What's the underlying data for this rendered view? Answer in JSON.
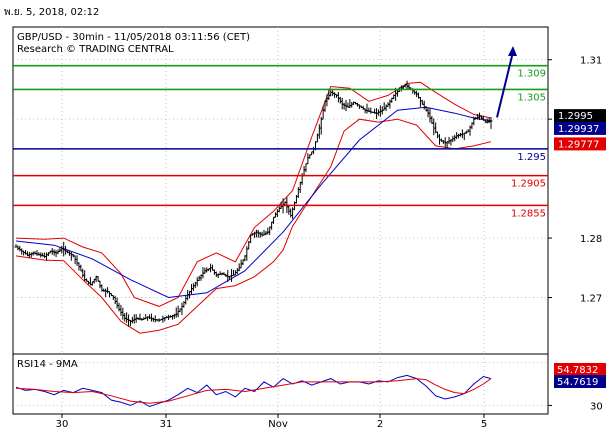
{
  "header": {
    "timestamp": "พ.ย. 5, 2018, 02:12",
    "title": "GBP/USD - 30min - 11/05/2018 03:11:56 (CET)",
    "source": "Research © TRADING CENTRAL"
  },
  "colors": {
    "green": "#1c9a1c",
    "red": "#e00000",
    "blue": "#00008c",
    "price": "#000000",
    "band": "#e00000",
    "ma": "#0000c8",
    "grid": "#aaaaaa"
  },
  "chart_data": [
    {
      "type": "candlestick",
      "title": "GBP/USD - 30min - 11/05/2018 03:11:56 (CET)",
      "x_ticks": [
        "30",
        "31",
        "Nov",
        "2",
        "5"
      ],
      "y_ticks": [
        {
          "value": 1.27,
          "label": "1.27"
        },
        {
          "value": 1.28,
          "label": "1.28"
        },
        {
          "value": 1.3,
          "label": "1.30"
        },
        {
          "value": 1.31,
          "label": "1.31"
        }
      ],
      "ylim": [
        1.2605,
        1.3155
      ],
      "levels": [
        {
          "value": 1.309,
          "label": "1.309",
          "color": "green"
        },
        {
          "value": 1.305,
          "label": "1.305",
          "color": "green"
        },
        {
          "value": 1.295,
          "label": "1.295",
          "color": "blue"
        },
        {
          "value": 1.2905,
          "label": "1.2905",
          "color": "red"
        },
        {
          "value": 1.2855,
          "label": "1.2855",
          "color": "red"
        }
      ],
      "price_tags": [
        {
          "value": 1.2995,
          "label": "1.2995",
          "bg": "#000000",
          "fg": "#ffffff"
        },
        {
          "value": 1.29937,
          "label": "1.29937",
          "bg": "#00008c",
          "fg": "#ffffff"
        },
        {
          "value": 1.29777,
          "label": "1.29777",
          "bg": "#e00000",
          "fg": "#ffffff"
        }
      ],
      "projection": {
        "from": 1.3003,
        "to": 1.3123
      },
      "price_path": [
        [
          0,
          1.2785
        ],
        [
          3,
          1.2778
        ],
        [
          6,
          1.2771
        ],
        [
          9,
          1.2775
        ],
        [
          12,
          1.2772
        ],
        [
          15,
          1.2769
        ],
        [
          18,
          1.2778
        ],
        [
          21,
          1.2775
        ],
        [
          24,
          1.2782
        ],
        [
          27,
          1.2776
        ],
        [
          30,
          1.277
        ],
        [
          33,
          1.2752
        ],
        [
          36,
          1.273
        ],
        [
          39,
          1.2722
        ],
        [
          42,
          1.2735
        ],
        [
          45,
          1.2712
        ],
        [
          48,
          1.271
        ],
        [
          51,
          1.27
        ],
        [
          54,
          1.268
        ],
        [
          57,
          1.2665
        ],
        [
          60,
          1.266
        ],
        [
          63,
          1.2665
        ],
        [
          66,
          1.2663
        ],
        [
          69,
          1.2667
        ],
        [
          72,
          1.2663
        ],
        [
          75,
          1.2662
        ],
        [
          78,
          1.2666
        ],
        [
          81,
          1.2668
        ],
        [
          84,
          1.2672
        ],
        [
          87,
          1.2685
        ],
        [
          90,
          1.2705
        ],
        [
          93,
          1.272
        ],
        [
          96,
          1.2733
        ],
        [
          99,
          1.2745
        ],
        [
          102,
          1.275
        ],
        [
          105,
          1.2738
        ],
        [
          108,
          1.274
        ],
        [
          111,
          1.2735
        ],
        [
          114,
          1.2738
        ],
        [
          117,
          1.275
        ],
        [
          120,
          1.277
        ],
        [
          123,
          1.2805
        ],
        [
          126,
          1.281
        ],
        [
          129,
          1.2805
        ],
        [
          132,
          1.281
        ],
        [
          135,
          1.2835
        ],
        [
          138,
          1.285
        ],
        [
          141,
          1.286
        ],
        [
          144,
          1.2838
        ],
        [
          147,
          1.287
        ],
        [
          150,
          1.2905
        ],
        [
          153,
          1.2935
        ],
        [
          156,
          1.295
        ],
        [
          159,
          1.2985
        ],
        [
          162,
          1.303
        ],
        [
          165,
          1.3045
        ],
        [
          168,
          1.304
        ],
        [
          171,
          1.3025
        ],
        [
          174,
          1.302
        ],
        [
          177,
          1.3028
        ],
        [
          180,
          1.3022
        ],
        [
          183,
          1.3015
        ],
        [
          186,
          1.3012
        ],
        [
          189,
          1.301
        ],
        [
          192,
          1.3015
        ],
        [
          195,
          1.3025
        ],
        [
          198,
          1.304
        ],
        [
          201,
          1.305
        ],
        [
          204,
          1.3058
        ],
        [
          207,
          1.305
        ],
        [
          210,
          1.3042
        ],
        [
          213,
          1.3025
        ],
        [
          216,
          1.301
        ],
        [
          219,
          1.2985
        ],
        [
          222,
          1.2965
        ],
        [
          225,
          1.296
        ],
        [
          228,
          1.2965
        ],
        [
          231,
          1.2972
        ],
        [
          234,
          1.2975
        ],
        [
          237,
          1.298
        ],
        [
          240,
          1.3
        ],
        [
          243,
          1.3005
        ],
        [
          246,
          1.2995
        ],
        [
          249,
          1.2997
        ]
      ],
      "ma_path": [
        [
          0,
          1.2795
        ],
        [
          20,
          1.2788
        ],
        [
          40,
          1.2765
        ],
        [
          60,
          1.273
        ],
        [
          80,
          1.27
        ],
        [
          100,
          1.2708
        ],
        [
          120,
          1.2745
        ],
        [
          140,
          1.281
        ],
        [
          160,
          1.289
        ],
        [
          180,
          1.2965
        ],
        [
          200,
          1.3015
        ],
        [
          215,
          1.302
        ],
        [
          230,
          1.301
        ],
        [
          240,
          1.3002
        ],
        [
          249,
          1.2997
        ]
      ],
      "band_upper": [
        [
          0,
          1.28
        ],
        [
          15,
          1.2798
        ],
        [
          25,
          1.28
        ],
        [
          35,
          1.2785
        ],
        [
          45,
          1.2775
        ],
        [
          55,
          1.274
        ],
        [
          62,
          1.27
        ],
        [
          75,
          1.2685
        ],
        [
          85,
          1.27
        ],
        [
          95,
          1.276
        ],
        [
          105,
          1.2775
        ],
        [
          115,
          1.276
        ],
        [
          125,
          1.2818
        ],
        [
          135,
          1.2845
        ],
        [
          145,
          1.288
        ],
        [
          155,
          1.297
        ],
        [
          165,
          1.3055
        ],
        [
          175,
          1.3052
        ],
        [
          185,
          1.303
        ],
        [
          195,
          1.304
        ],
        [
          205,
          1.306
        ],
        [
          212,
          1.3062
        ],
        [
          220,
          1.3045
        ],
        [
          230,
          1.3025
        ],
        [
          240,
          1.3008
        ],
        [
          249,
          1.3002
        ]
      ],
      "band_lower": [
        [
          0,
          1.277
        ],
        [
          15,
          1.2763
        ],
        [
          25,
          1.2762
        ],
        [
          35,
          1.273
        ],
        [
          45,
          1.27
        ],
        [
          55,
          1.266
        ],
        [
          65,
          1.264
        ],
        [
          75,
          1.2645
        ],
        [
          85,
          1.2655
        ],
        [
          95,
          1.2685
        ],
        [
          105,
          1.2715
        ],
        [
          115,
          1.272
        ],
        [
          125,
          1.2735
        ],
        [
          135,
          1.276
        ],
        [
          140,
          1.278
        ],
        [
          145,
          1.282
        ],
        [
          155,
          1.287
        ],
        [
          165,
          1.292
        ],
        [
          172,
          1.298
        ],
        [
          180,
          1.3
        ],
        [
          190,
          1.2995
        ],
        [
          200,
          1.3
        ],
        [
          210,
          1.299
        ],
        [
          220,
          1.2955
        ],
        [
          230,
          1.295
        ],
        [
          240,
          1.2955
        ],
        [
          249,
          1.2962
        ]
      ]
    },
    {
      "type": "line",
      "title": "RSI14 - 9MA",
      "x_ticks": [
        "30",
        "31",
        "Nov",
        "2",
        "5"
      ],
      "y_ticks": [
        {
          "value": 30,
          "label": "30"
        }
      ],
      "ylim": [
        22,
        78
      ],
      "value_tags": [
        {
          "value": 54.7832,
          "label": "54.7832",
          "bg": "#e00000",
          "fg": "#ffffff"
        },
        {
          "value": 54.7619,
          "label": "54.7619",
          "bg": "#00008c",
          "fg": "#ffffff"
        }
      ],
      "series": [
        {
          "color": "ma",
          "values": [
            [
              0,
              47
            ],
            [
              5,
              44
            ],
            [
              10,
              45
            ],
            [
              15,
              43
            ],
            [
              20,
              40
            ],
            [
              25,
              44
            ],
            [
              30,
              42
            ],
            [
              35,
              46
            ],
            [
              40,
              44
            ],
            [
              45,
              42
            ],
            [
              50,
              35
            ],
            [
              55,
              33
            ],
            [
              60,
              30
            ],
            [
              65,
              34
            ],
            [
              70,
              29
            ],
            [
              75,
              32
            ],
            [
              80,
              35
            ],
            [
              85,
              40
            ],
            [
              90,
              46
            ],
            [
              95,
              42
            ],
            [
              100,
              49
            ],
            [
              105,
              40
            ],
            [
              110,
              43
            ],
            [
              115,
              38
            ],
            [
              120,
              46
            ],
            [
              125,
              43
            ],
            [
              130,
              52
            ],
            [
              135,
              47
            ],
            [
              140,
              55
            ],
            [
              145,
              50
            ],
            [
              150,
              53
            ],
            [
              155,
              49
            ],
            [
              160,
              52
            ],
            [
              165,
              55
            ],
            [
              170,
              50
            ],
            [
              175,
              52
            ],
            [
              180,
              52
            ],
            [
              185,
              50
            ],
            [
              190,
              53
            ],
            [
              195,
              52
            ],
            [
              200,
              56
            ],
            [
              205,
              58
            ],
            [
              210,
              55
            ],
            [
              215,
              48
            ],
            [
              220,
              39
            ],
            [
              225,
              36
            ],
            [
              230,
              38
            ],
            [
              235,
              41
            ],
            [
              240,
              50
            ],
            [
              245,
              57
            ],
            [
              249,
              55
            ]
          ]
        },
        {
          "color": "band",
          "values": [
            [
              0,
              46
            ],
            [
              10,
              45
            ],
            [
              20,
              43
            ],
            [
              30,
              42
            ],
            [
              40,
              43
            ],
            [
              50,
              39
            ],
            [
              60,
              34
            ],
            [
              70,
              32
            ],
            [
              80,
              34
            ],
            [
              90,
              39
            ],
            [
              100,
              44
            ],
            [
              110,
              45
            ],
            [
              120,
              43
            ],
            [
              130,
              46
            ],
            [
              140,
              49
            ],
            [
              150,
              52
            ],
            [
              160,
              52
            ],
            [
              170,
              52
            ],
            [
              180,
              52
            ],
            [
              190,
              52
            ],
            [
              200,
              53
            ],
            [
              210,
              55
            ],
            [
              215,
              54
            ],
            [
              220,
              49
            ],
            [
              225,
              45
            ],
            [
              230,
              42
            ],
            [
              235,
              41
            ],
            [
              240,
              45
            ],
            [
              245,
              50
            ],
            [
              249,
              55
            ]
          ]
        }
      ]
    }
  ]
}
